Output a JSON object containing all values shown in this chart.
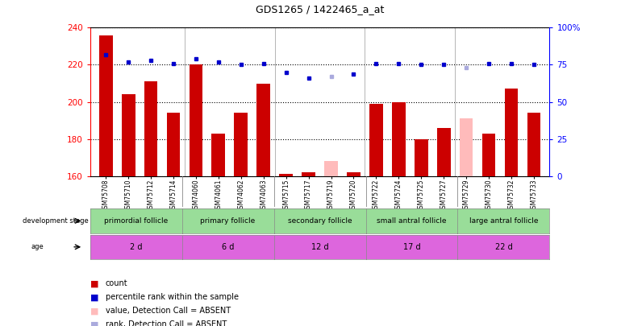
{
  "title": "GDS1265 / 1422465_a_at",
  "samples": [
    "GSM75708",
    "GSM75710",
    "GSM75712",
    "GSM75714",
    "GSM74060",
    "GSM74061",
    "GSM74062",
    "GSM74063",
    "GSM75715",
    "GSM75717",
    "GSM75719",
    "GSM75720",
    "GSM75722",
    "GSM75724",
    "GSM75725",
    "GSM75727",
    "GSM75729",
    "GSM75730",
    "GSM75732",
    "GSM75733"
  ],
  "bar_values": [
    236,
    204,
    211,
    194,
    220,
    183,
    194,
    210,
    161,
    162,
    168,
    162,
    199,
    200,
    180,
    186,
    191,
    183,
    207,
    194
  ],
  "bar_absent": [
    false,
    false,
    false,
    false,
    false,
    false,
    false,
    false,
    false,
    false,
    true,
    false,
    false,
    false,
    false,
    false,
    true,
    false,
    false,
    false
  ],
  "rank_values": [
    82,
    77,
    78,
    76,
    79,
    77,
    75,
    76,
    70,
    66,
    67,
    69,
    76,
    76,
    75,
    75,
    73,
    76,
    76,
    75
  ],
  "rank_absent": [
    false,
    false,
    false,
    false,
    false,
    false,
    false,
    false,
    false,
    false,
    true,
    false,
    false,
    false,
    false,
    false,
    true,
    false,
    false,
    false
  ],
  "groups": [
    {
      "label": "primordial follicle",
      "start": 0,
      "end": 4,
      "age": "2 d"
    },
    {
      "label": "primary follicle",
      "start": 4,
      "end": 8,
      "age": "6 d"
    },
    {
      "label": "secondary follicle",
      "start": 8,
      "end": 12,
      "age": "12 d"
    },
    {
      "label": "small antral follicle",
      "start": 12,
      "end": 16,
      "age": "17 d"
    },
    {
      "label": "large antral follicle",
      "start": 16,
      "end": 20,
      "age": "22 d"
    }
  ],
  "ylim_left": [
    160,
    240
  ],
  "ylim_right": [
    0,
    100
  ],
  "yticks_left": [
    160,
    180,
    200,
    220,
    240
  ],
  "yticks_right": [
    0,
    25,
    50,
    75,
    100
  ],
  "bar_color": "#cc0000",
  "bar_absent_color": "#ffbbbb",
  "rank_color": "#0000cc",
  "rank_absent_color": "#aaaadd",
  "dev_color": "#99dd99",
  "age_color": "#dd66dd",
  "left_panel_color": "#cccccc",
  "grid_color": "#000000",
  "legend_items": [
    {
      "color": "#cc0000",
      "label": "count"
    },
    {
      "color": "#0000cc",
      "label": "percentile rank within the sample"
    },
    {
      "color": "#ffbbbb",
      "label": "value, Detection Call = ABSENT"
    },
    {
      "color": "#aaaadd",
      "label": "rank, Detection Call = ABSENT"
    }
  ]
}
